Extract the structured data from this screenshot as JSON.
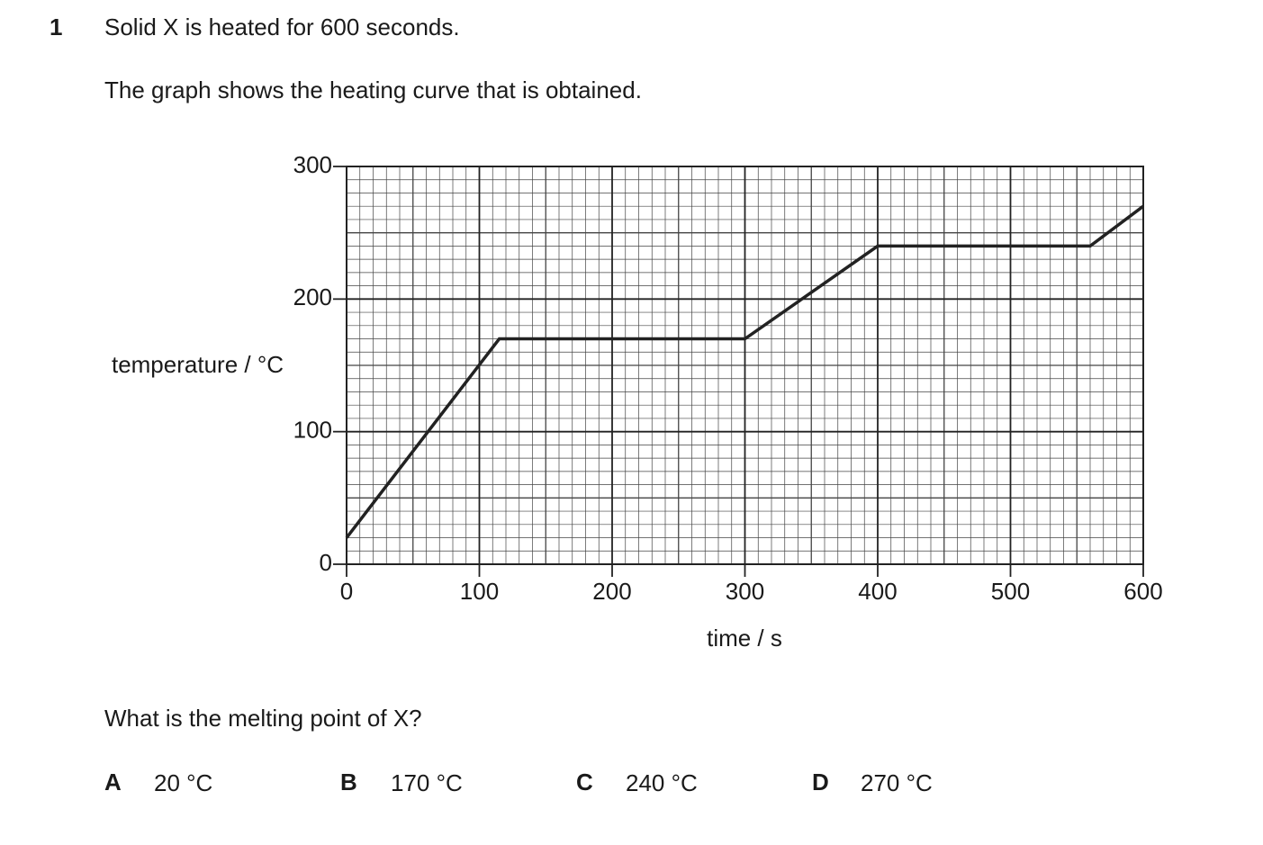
{
  "question": {
    "number": "1",
    "lines": [
      "Solid X is heated for 600 seconds.",
      "The graph shows the heating curve that is obtained."
    ],
    "prompt": "What is the melting point of X?",
    "options": [
      {
        "letter": "A",
        "text": "20 °C"
      },
      {
        "letter": "B",
        "text": "170 °C"
      },
      {
        "letter": "C",
        "text": "240 °C"
      },
      {
        "letter": "D",
        "text": "270 °C"
      }
    ]
  },
  "chart_data": {
    "type": "line",
    "ylabel": "temperature / °C",
    "xlabel": "time / s",
    "x": [
      0,
      115,
      300,
      400,
      560,
      600
    ],
    "values": [
      20,
      170,
      170,
      240,
      240,
      270
    ],
    "color": "#222222",
    "xlim": [
      0,
      600
    ],
    "ylim": [
      0,
      300
    ],
    "xticks": [
      0,
      100,
      200,
      300,
      400,
      500,
      600
    ],
    "yticks": [
      0,
      100,
      200,
      300
    ],
    "grid": true
  }
}
